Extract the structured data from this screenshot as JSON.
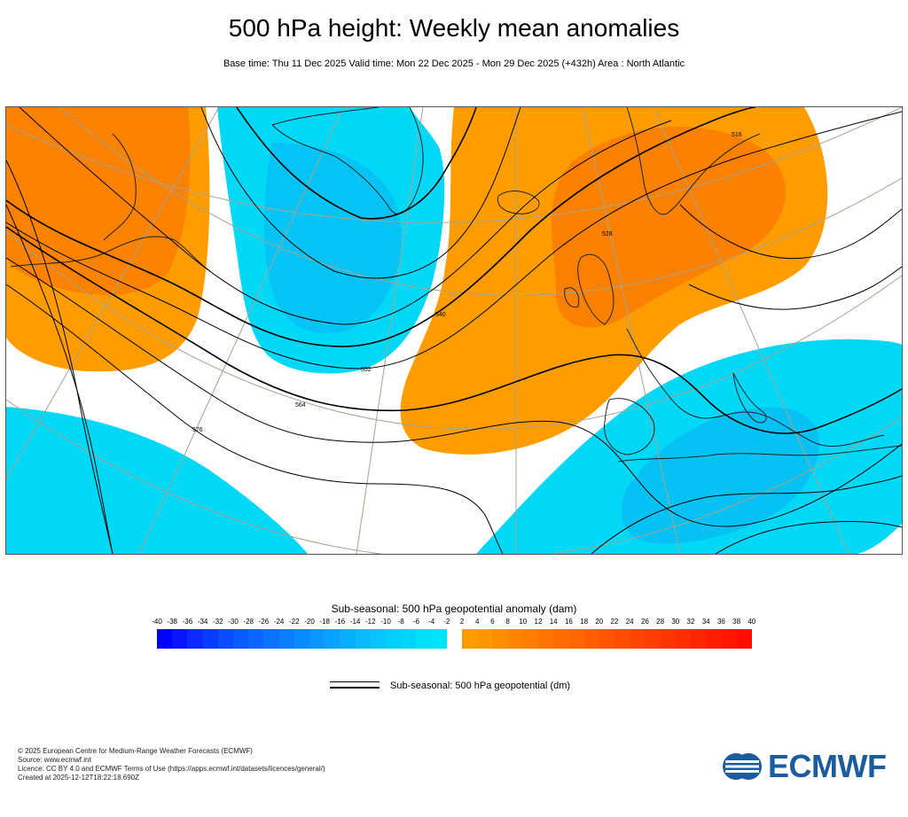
{
  "header": {
    "title": "500 hPa height: Weekly mean anomalies",
    "subtitle": "Base time: Thu 11 Dec 2025 Valid time: Mon 22 Dec 2025 - Mon 29 Dec 2025 (+432h) Area : North Atlantic"
  },
  "map": {
    "colors": {
      "negative_anomaly": "#00d8f8",
      "negative_anomaly_deep": "#0ab2f2",
      "positive_anomaly": "#ff9d00",
      "positive_anomaly_strong": "#fb7a00",
      "contour": "#000000",
      "graticule": "#a4a490",
      "coastline": "#222222"
    },
    "contour_labels": [
      "516",
      "540",
      "552",
      "564",
      "576",
      "528"
    ]
  },
  "colorbar": {
    "title": "Sub-seasonal: 500 hPa geopotential anomaly (dam)",
    "ticks": [
      "-40",
      "-38",
      "-36",
      "-34",
      "-32",
      "-30",
      "-28",
      "-26",
      "-24",
      "-22",
      "-20",
      "-18",
      "-16",
      "-14",
      "-12",
      "-10",
      "-8",
      "-6",
      "-4",
      "-2",
      "2",
      "4",
      "6",
      "8",
      "10",
      "12",
      "14",
      "16",
      "18",
      "20",
      "22",
      "24",
      "26",
      "28",
      "30",
      "32",
      "34",
      "36",
      "38",
      "40"
    ],
    "colors_negative": [
      "#0000ff",
      "#0a14ff",
      "#0a28ff",
      "#0a3cff",
      "#0a4cff",
      "#0a5aff",
      "#0a66ff",
      "#0a72ff",
      "#0a7eff",
      "#0a8aff",
      "#0a96ff",
      "#0aa2ff",
      "#0aaeff",
      "#0abaff",
      "#0ac4ff",
      "#00cefc",
      "#00d6fa",
      "#00def8",
      "#00e4f6"
    ],
    "colors_positive": [
      "#ff9c00",
      "#ff9500",
      "#ff8d00",
      "#ff8500",
      "#ff7d00",
      "#ff7500",
      "#ff6d00",
      "#ff6500",
      "#ff5d00",
      "#ff5500",
      "#ff4d00",
      "#ff4500",
      "#ff3d00",
      "#ff3500",
      "#ff2d00",
      "#ff2500",
      "#ff1d00",
      "#ff1500",
      "#ff0d00"
    ]
  },
  "legend": {
    "contour_label": "Sub-seasonal: 500 hPa geopotential (dm)"
  },
  "footer": {
    "copyright": "© 2025 European Centre for Medium-Range Weather Forecasts (ECMWF)",
    "source": "Source: www.ecmwf.int",
    "licence": "Licence: CC BY 4.0 and ECMWF Terms of Use (https://apps.ecmwf.int/datasets/licences/general/)",
    "created": "Created at 2025-12-12T18:22:18.690Z"
  },
  "logo": {
    "text": "ECMWF",
    "color": "#1a5c9e"
  }
}
